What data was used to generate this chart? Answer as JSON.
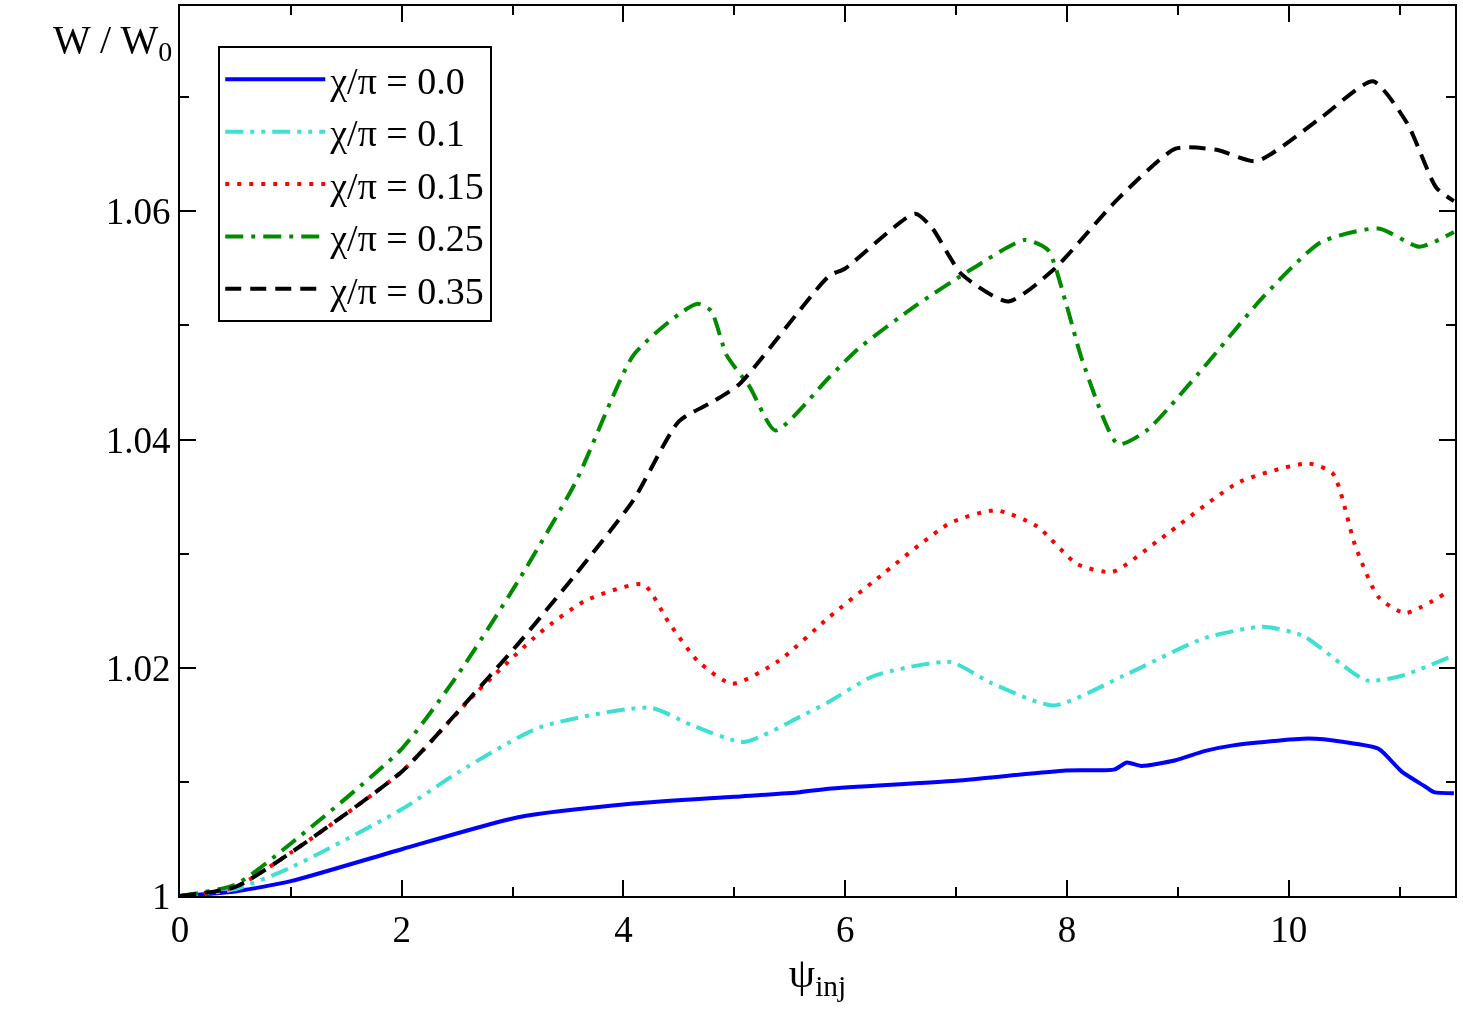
{
  "chart_data": {
    "type": "line",
    "xlabel": "ψ$_{inj}$",
    "ylabel": "W / W$_{0}$",
    "xlim": [
      0,
      11.5
    ],
    "ylim": [
      1,
      1.078
    ],
    "xticks": [
      0,
      {
        "value": 1,
        "label": null
      },
      2,
      {
        "value": 3,
        "label": null
      },
      4,
      {
        "value": 5,
        "label": null
      },
      6,
      {
        "value": 7,
        "label": null
      },
      8,
      {
        "value": 9,
        "label": null
      },
      10,
      {
        "value": 11,
        "label": null
      }
    ],
    "yticks": [
      1,
      {
        "value": 1.01,
        "label": null
      },
      1.02,
      {
        "value": 1.03,
        "label": null
      },
      1.04,
      {
        "value": 1.05,
        "label": null
      },
      1.06,
      {
        "value": 1.07,
        "label": null
      }
    ],
    "legend": "top left",
    "marker": "none",
    "series": [
      {
        "name": "χ/π = 0.0",
        "color": "#0000ff",
        "line_style": "solid",
        "x": [
          0,
          0.5,
          1,
          2,
          3.05,
          4.09,
          5.0,
          5.59,
          5.85,
          7.0,
          7.99,
          8.43,
          8.54,
          8.67,
          8.98,
          9.24,
          9.5,
          10.18,
          10.5,
          10.81,
          11.02,
          11.23,
          11.31,
          11.49
        ],
        "values": [
          1.0,
          1.0004,
          1.0013,
          1.0041,
          1.0069,
          1.0081,
          1.0087,
          1.0091,
          1.0094,
          1.0101,
          1.011,
          1.0111,
          1.0117,
          1.0114,
          1.0119,
          1.0127,
          1.0132,
          1.0138,
          1.0135,
          1.0129,
          1.0109,
          1.0096,
          1.0091,
          1.009
        ]
      },
      {
        "name": "χ/π = 0.1",
        "color": "#40e0d0",
        "line_style": "dashdotdot",
        "x": [
          0,
          0.5,
          1,
          2,
          2.52,
          3.25,
          4.24,
          4.61,
          5.09,
          5.59,
          5.85,
          6.26,
          6.95,
          7.31,
          7.88,
          8.51,
          9.24,
          9.77,
          10.13,
          10.7,
          11.02,
          11.49
        ],
        "values": [
          1.0,
          1.0006,
          1.0025,
          1.0076,
          1.0109,
          1.0148,
          1.0165,
          1.015,
          1.0135,
          1.0157,
          1.017,
          1.0193,
          1.0205,
          1.0187,
          1.0167,
          1.0193,
          1.0226,
          1.0236,
          1.0228,
          1.0189,
          1.0193,
          1.0211
        ]
      },
      {
        "name": "χ/π = 0.15",
        "color": "#ff0000",
        "line_style": "dotted",
        "x": [
          0,
          0.5,
          1,
          2,
          2.67,
          3.25,
          3.66,
          4.18,
          4.4,
          4.67,
          4.98,
          5.4,
          5.85,
          6.26,
          6.95,
          7.36,
          7.73,
          8.09,
          8.41,
          8.83,
          9.56,
          10.18,
          10.4,
          10.6,
          10.81,
          11.05,
          11.41
        ],
        "values": [
          1.0,
          1.0008,
          1.0038,
          1.0109,
          1.0178,
          1.0231,
          1.0259,
          1.0273,
          1.0241,
          1.0206,
          1.0186,
          1.0206,
          1.0244,
          1.0276,
          1.0327,
          1.0338,
          1.0324,
          1.0291,
          1.0284,
          1.0312,
          1.0363,
          1.0379,
          1.037,
          1.0307,
          1.0262,
          1.0248,
          1.0265
        ]
      },
      {
        "name": "χ/π = 0.25",
        "color": "#008b00",
        "line_style": "dashdot",
        "x": [
          0,
          0.5,
          1,
          2,
          2.52,
          3.05,
          3.57,
          4.09,
          4.5,
          4.67,
          4.79,
          4.93,
          5.14,
          5.37,
          5.85,
          6.11,
          6.63,
          7.15,
          7.62,
          7.83,
          7.99,
          8.14,
          8.46,
          8.72,
          9.24,
          9.77,
          10.29,
          10.81,
          11.18,
          11.49
        ],
        "values": [
          1.0,
          1.001,
          1.0046,
          1.0129,
          1.0196,
          1.0276,
          1.0363,
          1.0474,
          1.051,
          1.0519,
          1.0513,
          1.0474,
          1.0446,
          1.0408,
          1.0454,
          1.0479,
          1.0517,
          1.055,
          1.0575,
          1.0566,
          1.052,
          1.0469,
          1.0396,
          1.0408,
          1.0464,
          1.0525,
          1.0573,
          1.0585,
          1.0569,
          1.0582
        ]
      },
      {
        "name": "χ/π = 0.35",
        "color": "#000000",
        "line_style": "dashed",
        "x": [
          0,
          0.5,
          1,
          2,
          2.52,
          3.05,
          3.57,
          4.09,
          4.5,
          4.82,
          5.05,
          5.85,
          6.0,
          6.63,
          6.78,
          7.05,
          7.47,
          7.88,
          8.46,
          8.98,
          9.35,
          9.71,
          10.29,
          10.76,
          11.07,
          11.33,
          11.49
        ],
        "values": [
          1.0,
          1.0008,
          1.0038,
          1.0109,
          1.0163,
          1.0221,
          1.0282,
          1.0347,
          1.0416,
          1.0434,
          1.0449,
          1.0543,
          1.055,
          1.0598,
          1.0586,
          1.0545,
          1.0521,
          1.0549,
          1.0611,
          1.0655,
          1.0654,
          1.0644,
          1.0682,
          1.0714,
          1.0677,
          1.0621,
          1.0609
        ]
      }
    ]
  }
}
